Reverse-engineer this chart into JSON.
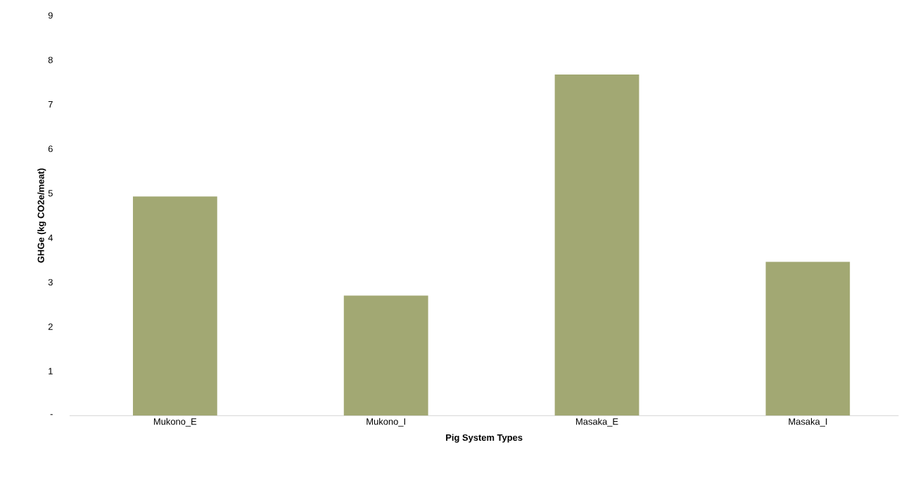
{
  "chart_data": {
    "type": "bar",
    "xlabel": "Pig System Types",
    "ylabel": "GHGe (kg CO2e/meat)",
    "categories": [
      "Mukono_E",
      "Mukono_I",
      "Masaka_E",
      "Masaka_I"
    ],
    "values": [
      4.93,
      2.7,
      7.67,
      3.46
    ],
    "color": "#a2a873",
    "ylim": [
      0,
      9
    ],
    "yticks": [
      {
        "value": 0,
        "label": "-"
      },
      1,
      2,
      3,
      4,
      5,
      6,
      7,
      8,
      9
    ]
  }
}
